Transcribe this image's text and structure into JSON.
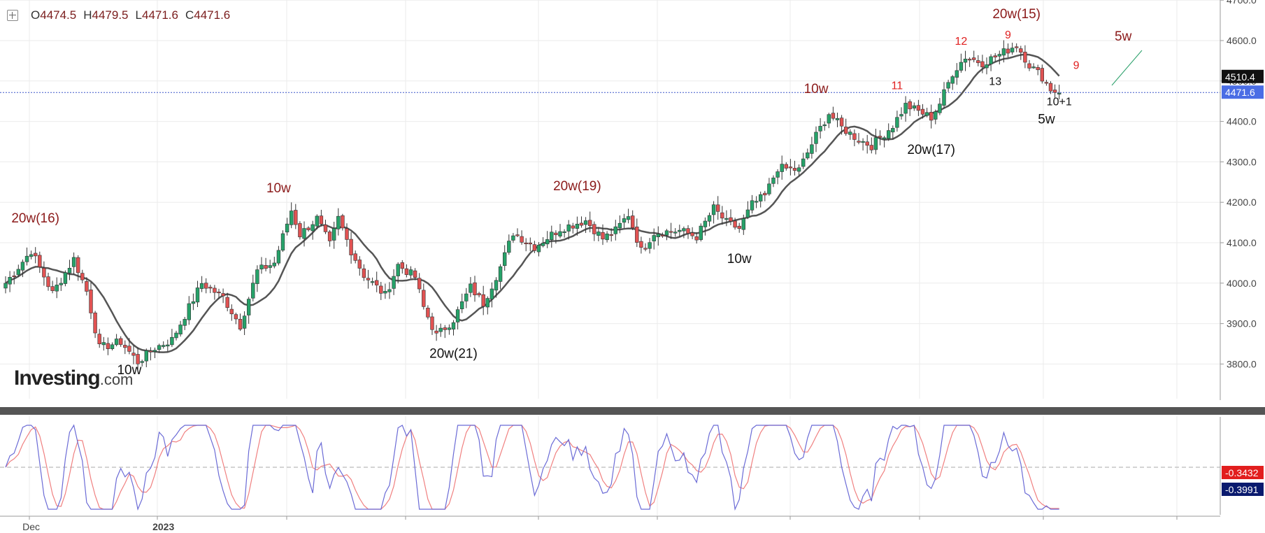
{
  "ohlc": {
    "o_label": "O",
    "o_value": "4474.5",
    "h_label": "H",
    "h_value": "4479.5",
    "l_label": "L",
    "l_value": "4471.6",
    "c_label": "C",
    "c_value": "4471.6"
  },
  "logo": {
    "main": "Investing",
    "sub": ".com"
  },
  "colors": {
    "up": "#26a269",
    "down": "#e05252",
    "ma": "#555555",
    "osc_fast": "#6b6bd6",
    "osc_slow": "#f08080",
    "ann_red": "#8b1a1a",
    "ann_brightred": "#e02020",
    "price_tag": "#4a6de5"
  },
  "chart_data": {
    "type": "candlestick",
    "interval": "daily",
    "ylim": [
      3750,
      4700
    ],
    "y_ticks": [
      "4700.0",
      "4600.0",
      "4500.0",
      "4400.0",
      "4300.0",
      "4200.0",
      "4100.0",
      "4000.0",
      "3900.0",
      "3800.0"
    ],
    "x_labels": [
      {
        "label": "Dec",
        "index": 6
      },
      {
        "label": "2023",
        "index": 37
      }
    ],
    "last_price": "4471.6",
    "ma_tag": "4510.4",
    "anchors": [
      [
        0,
        4000
      ],
      [
        6,
        4080
      ],
      [
        11,
        3975
      ],
      [
        16,
        4060
      ],
      [
        19,
        3980
      ],
      [
        22,
        3840
      ],
      [
        27,
        3855
      ],
      [
        31,
        3805
      ],
      [
        35,
        3840
      ],
      [
        39,
        3860
      ],
      [
        42,
        3920
      ],
      [
        46,
        4000
      ],
      [
        51,
        3965
      ],
      [
        55,
        3895
      ],
      [
        59,
        4030
      ],
      [
        63,
        4050
      ],
      [
        67,
        4180
      ],
      [
        69,
        4120
      ],
      [
        73,
        4160
      ],
      [
        76,
        4095
      ],
      [
        78,
        4160
      ],
      [
        81,
        4080
      ],
      [
        84,
        4020
      ],
      [
        89,
        3970
      ],
      [
        92,
        4045
      ],
      [
        96,
        4015
      ],
      [
        98,
        3940
      ],
      [
        101,
        3870
      ],
      [
        105,
        3910
      ],
      [
        109,
        3990
      ],
      [
        112,
        3950
      ],
      [
        116,
        4040
      ],
      [
        119,
        4125
      ],
      [
        124,
        4090
      ],
      [
        130,
        4135
      ],
      [
        136,
        4155
      ],
      [
        140,
        4110
      ],
      [
        143,
        4130
      ],
      [
        146,
        4170
      ],
      [
        149,
        4080
      ],
      [
        152,
        4125
      ],
      [
        158,
        4130
      ],
      [
        162,
        4115
      ],
      [
        166,
        4185
      ],
      [
        169,
        4150
      ],
      [
        172,
        4135
      ],
      [
        175,
        4195
      ],
      [
        178,
        4215
      ],
      [
        181,
        4285
      ],
      [
        186,
        4280
      ],
      [
        190,
        4365
      ],
      [
        193,
        4420
      ],
      [
        196,
        4385
      ],
      [
        200,
        4355
      ],
      [
        203,
        4340
      ],
      [
        208,
        4390
      ],
      [
        211,
        4440
      ],
      [
        214,
        4425
      ],
      [
        217,
        4410
      ],
      [
        219,
        4445
      ],
      [
        222,
        4520
      ],
      [
        225,
        4560
      ],
      [
        229,
        4545
      ],
      [
        233,
        4565
      ],
      [
        237,
        4590
      ],
      [
        240,
        4540
      ],
      [
        243,
        4510
      ],
      [
        245,
        4480
      ],
      [
        247,
        4470
      ]
    ],
    "wave_labels": [
      {
        "text": "20w(16)",
        "i": 7,
        "price": 4150,
        "color": "ann_red",
        "size": 19
      },
      {
        "text": "10w",
        "i": 29,
        "price": 3775,
        "color": "black",
        "size": 19
      },
      {
        "text": "10w",
        "i": 64,
        "price": 4225,
        "color": "ann_red",
        "size": 19
      },
      {
        "text": "20w(21)",
        "i": 105,
        "price": 3815,
        "color": "black",
        "size": 19
      },
      {
        "text": "20w(19)",
        "i": 134,
        "price": 4230,
        "color": "ann_red",
        "size": 19
      },
      {
        "text": "10w",
        "i": 172,
        "price": 4050,
        "color": "black",
        "size": 19
      },
      {
        "text": "10w",
        "i": 190,
        "price": 4470,
        "color": "ann_red",
        "size": 19
      },
      {
        "text": "11",
        "i": 209,
        "price": 4480,
        "color": "ann_brightred",
        "size": 16
      },
      {
        "text": "20w(17)",
        "i": 217,
        "price": 4320,
        "color": "black",
        "size": 19
      },
      {
        "text": "12",
        "i": 224,
        "price": 4590,
        "color": "ann_brightred",
        "size": 16
      },
      {
        "text": "13",
        "i": 232,
        "price": 4490,
        "color": "black",
        "size": 16
      },
      {
        "text": "20w(15)",
        "i": 237,
        "price": 4655,
        "color": "ann_red",
        "size": 19
      },
      {
        "text": "9",
        "i": 235,
        "price": 4605,
        "color": "ann_brightred",
        "size": 16
      },
      {
        "text": "9",
        "i": 251,
        "price": 4530,
        "color": "ann_brightred",
        "size": 16
      },
      {
        "text": "10+1",
        "i": 247,
        "price": 4440,
        "color": "black",
        "size": 16
      },
      {
        "text": "5w",
        "i": 244,
        "price": 4395,
        "color": "black",
        "size": 19
      },
      {
        "text": "5w",
        "i": 262,
        "price": 4600,
        "color": "ann_red",
        "size": 19
      }
    ],
    "osc_values": [
      "-0.3432",
      "-0.3991"
    ]
  }
}
